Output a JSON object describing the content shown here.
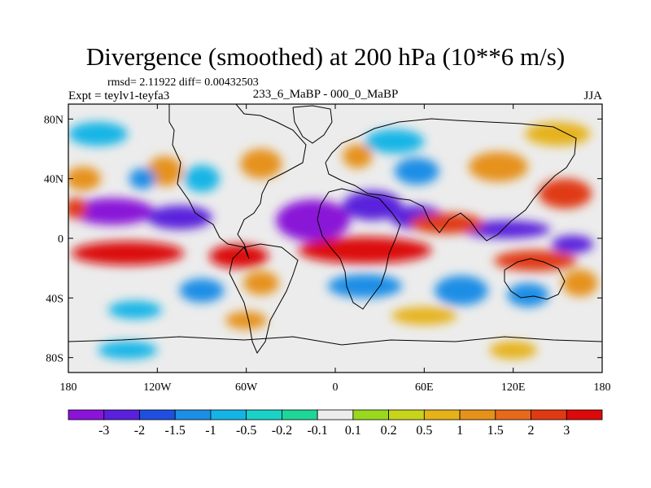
{
  "title": "Divergence (smoothed) at 200 hPa (10**6 m/s)",
  "stats": "rmsd= 2.11922 diff= 0.00432503",
  "experiment": "Expt = teylv1-teyfa3",
  "period": "233_6_MaBP - 000_0_MaBP",
  "season": "JJA",
  "chart_data": {
    "type": "heatmap",
    "title": "Divergence (smoothed) at 200 hPa (10**6 m/s)",
    "xlabel": "",
    "ylabel": "",
    "xlim": [
      -180,
      180
    ],
    "ylim": [
      -90,
      90
    ],
    "x_ticks": [
      {
        "value": -180,
        "label": "180"
      },
      {
        "value": -120,
        "label": "120W"
      },
      {
        "value": -60,
        "label": "60W"
      },
      {
        "value": 0,
        "label": "0"
      },
      {
        "value": 60,
        "label": "60E"
      },
      {
        "value": 120,
        "label": "120E"
      },
      {
        "value": 180,
        "label": "180"
      }
    ],
    "y_ticks": [
      {
        "value": 80,
        "label": "80N"
      },
      {
        "value": 40,
        "label": "40N"
      },
      {
        "value": 0,
        "label": "0"
      },
      {
        "value": -40,
        "label": "40S"
      },
      {
        "value": -80,
        "label": "80S"
      }
    ],
    "colorbar": {
      "colors": [
        "#8a14d8",
        "#5a20dc",
        "#1f4fe0",
        "#1c8ee6",
        "#14b5e6",
        "#1ad2c8",
        "#1ed69a",
        "#ececec",
        "#9ad81e",
        "#c8d41a",
        "#e6b21a",
        "#e6921a",
        "#e66a1a",
        "#e03a14",
        "#dc0a0a"
      ],
      "boundaries": [
        "-3",
        "-2",
        "-1.5",
        "-1",
        "-0.5",
        "-0.2",
        "-0.1",
        "0.1",
        "0.2",
        "0.5",
        "1",
        "1.5",
        "2",
        "3"
      ]
    },
    "field_sketch": [
      {
        "lon": -150,
        "lat": 18,
        "value": -3.2,
        "rlon": 28,
        "rlat": 9
      },
      {
        "lon": -105,
        "lat": 14,
        "value": -3.0,
        "rlon": 22,
        "rlat": 8
      },
      {
        "lon": -15,
        "lat": 12,
        "value": -3.3,
        "rlon": 25,
        "rlat": 14
      },
      {
        "lon": 25,
        "lat": 22,
        "value": -3.0,
        "rlon": 20,
        "rlat": 10
      },
      {
        "lon": 55,
        "lat": 14,
        "value": -2.4,
        "rlon": 18,
        "rlat": 8
      },
      {
        "lon": 115,
        "lat": 6,
        "value": -2.6,
        "rlon": 30,
        "rlat": 6
      },
      {
        "lon": 160,
        "lat": -4,
        "value": -2.4,
        "rlon": 14,
        "rlat": 6
      },
      {
        "lon": -140,
        "lat": -10,
        "value": 3.0,
        "rlon": 38,
        "rlat": 8
      },
      {
        "lon": -175,
        "lat": 20,
        "value": 2.8,
        "rlon": 8,
        "rlat": 7
      },
      {
        "lon": -65,
        "lat": -12,
        "value": 3.0,
        "rlon": 20,
        "rlat": 8
      },
      {
        "lon": 20,
        "lat": -8,
        "value": 3.0,
        "rlon": 45,
        "rlat": 9
      },
      {
        "lon": 75,
        "lat": 10,
        "value": 2.5,
        "rlon": 25,
        "rlat": 7
      },
      {
        "lon": 135,
        "lat": -15,
        "value": 2.6,
        "rlon": 28,
        "rlat": 7
      },
      {
        "lon": 155,
        "lat": 30,
        "value": 2.6,
        "rlon": 18,
        "rlat": 10
      },
      {
        "lon": -170,
        "lat": 40,
        "value": 1.2,
        "rlon": 12,
        "rlat": 8
      },
      {
        "lon": -115,
        "lat": 45,
        "value": 1.1,
        "rlon": 12,
        "rlat": 10
      },
      {
        "lon": -50,
        "lat": 50,
        "value": 1.0,
        "rlon": 14,
        "rlat": 10
      },
      {
        "lon": 110,
        "lat": 48,
        "value": 1.0,
        "rlon": 20,
        "rlat": 10
      },
      {
        "lon": -130,
        "lat": 40,
        "value": -1.5,
        "rlon": 9,
        "rlat": 7
      },
      {
        "lon": -90,
        "lat": 40,
        "value": -0.9,
        "rlon": 12,
        "rlat": 9
      },
      {
        "lon": 55,
        "lat": 45,
        "value": -1.2,
        "rlon": 15,
        "rlat": 9
      },
      {
        "lon": 40,
        "lat": 65,
        "value": -1.0,
        "rlon": 20,
        "rlat": 8
      },
      {
        "lon": -90,
        "lat": -35,
        "value": -1.4,
        "rlon": 15,
        "rlat": 8
      },
      {
        "lon": -50,
        "lat": -30,
        "value": 1.3,
        "rlon": 12,
        "rlat": 8
      },
      {
        "lon": 20,
        "lat": -32,
        "value": -1.2,
        "rlon": 25,
        "rlat": 8
      },
      {
        "lon": 85,
        "lat": -35,
        "value": -1.5,
        "rlon": 18,
        "rlat": 10
      },
      {
        "lon": 130,
        "lat": -38,
        "value": -1.4,
        "rlon": 14,
        "rlat": 8
      },
      {
        "lon": 165,
        "lat": -30,
        "value": 1.0,
        "rlon": 12,
        "rlat": 9
      },
      {
        "lon": -60,
        "lat": -55,
        "value": 1.0,
        "rlon": 14,
        "rlat": 6
      },
      {
        "lon": -135,
        "lat": -48,
        "value": -0.7,
        "rlon": 18,
        "rlat": 6
      },
      {
        "lon": 60,
        "lat": -52,
        "value": 0.6,
        "rlon": 22,
        "rlat": 6
      },
      {
        "lon": -140,
        "lat": -75,
        "value": -0.6,
        "rlon": 20,
        "rlat": 6
      },
      {
        "lon": 120,
        "lat": -75,
        "value": 0.6,
        "rlon": 16,
        "rlat": 6
      },
      {
        "lon": -160,
        "lat": 70,
        "value": -0.8,
        "rlon": 20,
        "rlat": 8
      },
      {
        "lon": 150,
        "lat": 70,
        "value": 0.7,
        "rlon": 22,
        "rlat": 8
      },
      {
        "lon": 15,
        "lat": 55,
        "value": 1.2,
        "rlon": 10,
        "rlat": 8
      }
    ]
  }
}
